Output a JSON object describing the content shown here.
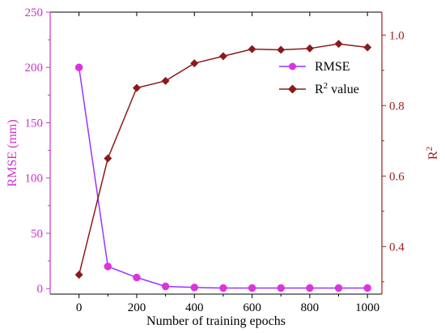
{
  "chart_data": {
    "type": "line",
    "xlabel": "Number of training epochs",
    "x_ticks": [
      "0",
      "200",
      "400",
      "600",
      "800",
      "1000"
    ],
    "xlim": [
      -100,
      1050
    ],
    "left_axis": {
      "label": "RMSE (mm)",
      "color": "#cc33cc",
      "ylim": [
        -5,
        250
      ],
      "ticks": [
        "0",
        "50",
        "100",
        "150",
        "200",
        "250"
      ]
    },
    "right_axis": {
      "label": "R",
      "label_sup": "2",
      "color": "#a01c1c",
      "ylim": [
        0.265,
        1.065
      ],
      "ticks": [
        "0.4",
        "0.6",
        "0.8",
        "1.0"
      ]
    },
    "x": [
      0,
      100,
      200,
      300,
      400,
      500,
      600,
      700,
      800,
      900,
      1000
    ],
    "series": [
      {
        "name": "RMSE",
        "axis": "left",
        "color": "#9933ff",
        "marker_color": "#dd33dd",
        "marker": "circle",
        "values": [
          200,
          20,
          10,
          2,
          1,
          0.5,
          0.5,
          0.5,
          0.5,
          0.5,
          0.5
        ]
      },
      {
        "name": "R",
        "name_sup": "2",
        "name_suffix": " value",
        "axis": "right",
        "color": "#8b1a1a",
        "marker_color": "#8b1a1a",
        "marker": "diamond",
        "values": [
          0.32,
          0.65,
          0.85,
          0.87,
          0.92,
          0.94,
          0.96,
          0.958,
          0.962,
          0.975,
          0.965
        ]
      }
    ],
    "grid": false,
    "legend_position": "top-right"
  }
}
